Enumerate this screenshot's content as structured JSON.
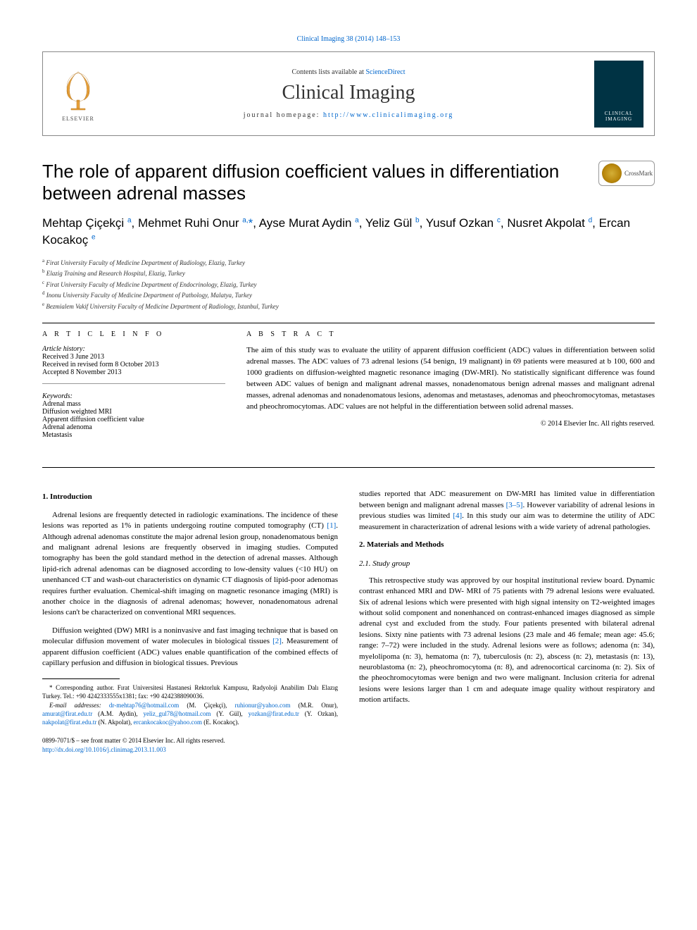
{
  "top_link": "Clinical Imaging 38 (2014) 148–153",
  "header": {
    "contents_text": "Contents lists available at ",
    "contents_link": "ScienceDirect",
    "journal_name": "Clinical Imaging",
    "homepage_label": "journal homepage: ",
    "homepage_url": "http://www.clinicalimaging.org",
    "elsevier_label": "ELSEVIER",
    "right_logo_text": "CLINICAL IMAGING"
  },
  "crossmark_label": "CrossMark",
  "title": "The role of apparent diffusion coefficient values in differentiation between adrenal masses",
  "authors_html": "Mehtap Çiçekçi <sup>a</sup>, Mehmet Ruhi Onur <sup>a,</sup><span class='star'>*</span>, Ayse Murat Aydin <sup>a</sup>, Yeliz Gül <sup>b</sup>, Yusuf Ozkan <sup>c</sup>, Nusret Akpolat <sup>d</sup>, Ercan Kocakoç <sup>e</sup>",
  "affiliations": [
    {
      "sup": "a",
      "text": "Firat University Faculty of Medicine Department of Radiology, Elazig, Turkey"
    },
    {
      "sup": "b",
      "text": "Elazig Training and Research Hospital, Elazig, Turkey"
    },
    {
      "sup": "c",
      "text": "Firat University Faculty of Medicine Department of Endocrinology, Elazig, Turkey"
    },
    {
      "sup": "d",
      "text": "Inonu University Faculty of Medicine Department of Pathology, Malatya, Turkey"
    },
    {
      "sup": "e",
      "text": "Bezmialem Vakif University Faculty of Medicine Department of Radiology, Istanbul, Turkey"
    }
  ],
  "article_info": {
    "heading": "A R T I C L E   I N F O",
    "history_label": "Article history:",
    "history": [
      "Received 3 June 2013",
      "Received in revised form 8 October 2013",
      "Accepted 8 November 2013"
    ],
    "keywords_label": "Keywords:",
    "keywords": [
      "Adrenal mass",
      "Diffusion weighted MRI",
      "Apparent diffusion coefficient value",
      "Adrenal adenoma",
      "Metastasis"
    ]
  },
  "abstract": {
    "heading": "A B S T R A C T",
    "text": "The aim of this study was to evaluate the utility of apparent diffusion coefficient (ADC) values in differentiation between solid adrenal masses. The ADC values of 73 adrenal lesions (54 benign, 19 malignant) in 69 patients were measured at b 100, 600 and 1000 gradients on diffusion-weighted magnetic resonance imaging (DW-MRI). No statistically significant difference was found between ADC values of benign and malignant adrenal masses, nonadenomatous benign adrenal masses and malignant adrenal masses, adrenal adenomas and nonadenomatous lesions, adenomas and metastases, adenomas and pheochromocytomas, metastases and pheochromocytomas. ADC values are not helpful in the differentiation between solid adrenal masses.",
    "copyright": "© 2014 Elsevier Inc. All rights reserved."
  },
  "sections": {
    "intro_heading": "1. Introduction",
    "intro_p1": "Adrenal lesions are frequently detected in radiologic examinations. The incidence of these lesions was reported as 1% in patients undergoing routine computed tomography (CT) [1]. Although adrenal adenomas constitute the major adrenal lesion group, nonadenomatous benign and malignant adrenal lesions are frequently observed in imaging studies. Computed tomography has been the gold standard method in the detection of adrenal masses. Although lipid-rich adrenal adenomas can be diagnosed according to low-density values (<10 HU) on unenhanced CT and wash-out characteristics on dynamic CT diagnosis of lipid-poor adenomas requires further evaluation. Chemical-shift imaging on magnetic resonance imaging (MRI) is another choice in the diagnosis of adrenal adenomas; however, nonadenomatous adrenal lesions can't be characterized on conventional MRI sequences.",
    "intro_p2": "Diffusion weighted (DW) MRI is a noninvasive and fast imaging technique that is based on molecular diffusion movement of water molecules in biological tissues [2]. Measurement of apparent diffusion coefficient (ADC) values enable quantification of the combined effects of capillary perfusion and diffusion in biological tissues. Previous",
    "intro_p3": "studies reported that ADC measurement on DW-MRI has limited value in differentiation between benign and malignant adrenal masses [3–5]. However variability of adrenal lesions in previous studies was limited [4]. In this study our aim was to determine the utility of ADC measurement in characterization of adrenal lesions with a wide variety of adrenal pathologies.",
    "mm_heading": "2. Materials and Methods",
    "sg_heading": "2.1. Study group",
    "sg_p1": "This retrospective study was approved by our hospital institutional review board. Dynamic contrast enhanced MRI and DW- MRI of 75 patients with 79 adrenal lesions were evaluated. Six of adrenal lesions which were presented with high signal intensity on T2-weighted images without solid component and nonenhanced on contrast-enhanced images diagnosed as simple adrenal cyst and excluded from the study. Four patients presented with bilateral adrenal lesions. Sixty nine patients with 73 adrenal lesions (23 male and 46 female; mean age: 45.6; range: 7–72) were included in the study. Adrenal lesions were as follows; adenoma (n: 34), myelolipoma (n: 3), hematoma (n: 7), tuberculosis (n: 2), abscess (n: 2), metastasis (n: 13), neuroblastoma (n: 2), pheochromocytoma (n: 8), and adrenocortical carcinoma (n: 2). Six of the pheochromocytomas were benign and two were malignant. Inclusion criteria for adrenal lesions were lesions larger than 1 cm and adequate image quality without respiratory and motion artifacts."
  },
  "footnote": {
    "corr": "* Corresponding author. Fırat Universitesi Hastanesi Rektorluk Kampusu, Radyoloji Anabilim Dalı Elazıg Turkey. Tel.: +90 4242333555x1381; fax: +90 4242388090036.",
    "emails_label": "E-mail addresses:",
    "emails": "dr-mehtap76@hotmail.com (M. Çiçekçi), ruhionur@yahoo.com (M.R. Onur), amurat@firat.edu.tr (A.M. Aydin), yeliz_gul78@hotmail.com (Y. Gül), yozkan@firat.edu.tr (Y. Ozkan), nakpolat@firat.edu.tr (N. Akpolat), ercankocakoc@yahoo.com (E. Kocakoç)."
  },
  "footer": {
    "issn": "0899-7071/$ – see front matter © 2014 Elsevier Inc. All rights reserved.",
    "doi": "http://dx.doi.org/10.1016/j.clinimag.2013.11.003"
  },
  "colors": {
    "link": "#0066cc",
    "logo_bg": "#003344"
  }
}
